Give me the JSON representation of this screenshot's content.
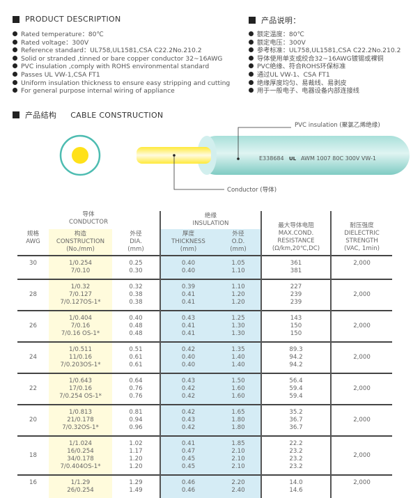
{
  "description_en": {
    "title": "PRODUCT DESCRIPTION",
    "items": [
      "Rated temperature：80℃",
      "Rated voltage：300V",
      "Reference standard：UL758,UL1581,CSA C22.2No.210.2",
      "Solid or stranded ,tinned or bare copper conductor 32~16AWG",
      "PVC insulation ,comply with ROHS environmental standard",
      "Passes UL VW-1,CSA FT1",
      "Uniform insulation thickness to ensure easy stripping and cutting",
      "For general purpose internal wiring of appliance"
    ]
  },
  "description_cn": {
    "title": "产品说明：",
    "items": [
      "额定温度：80℃",
      "额定电压：300V",
      "参考标准：UL758,UL1581,CSA C22.2No.210.2",
      "导体使用单支或绞合32~16AWG镀锡或裸铜",
      "PVC绝缘、符合ROHS环保标准",
      "通过UL VW-1、CSA FT1",
      "绝缘厚度均匀、易裁线、易剥皮",
      "用于一般电子、电器设备内部连接线"
    ]
  },
  "construction": {
    "title_cn": "产品结构",
    "title_en": "CABLE CONSTRUCTION",
    "insulation_label": "PVC insulation (聚氯乙烯绝缘)",
    "conductor_label": "Conductor (导体)",
    "cable_print": "E338684",
    "ul_mark": "UL",
    "cable_print2": "AWM 1007 80C 300V VW-1",
    "colors": {
      "insulation": "#8fd3cc",
      "conductor": "#ffe11a"
    }
  },
  "table": {
    "headers": {
      "conductor": [
        "导体",
        "CONDUCTOR"
      ],
      "insulation": [
        "绝缘",
        "INSULATION"
      ],
      "awg": [
        "规格",
        "AWG"
      ],
      "construction": [
        "构造",
        "CONSTRUCTION",
        "(No./mm)"
      ],
      "dia": [
        "外径",
        "DIA.",
        "(mm)"
      ],
      "thickness": [
        "厚度",
        "THICKNESS",
        "(mm)"
      ],
      "od": [
        "外径",
        "O.D.",
        "(mm)"
      ],
      "resistance": [
        "最大导体电阻",
        "MAX.COND.",
        "RESISTANCE",
        "(Ω/km,20℃,DC)"
      ],
      "dielectric": [
        "耐压强度",
        "DIELECTRIC",
        "STRENGTH",
        "(VAC, 1min)"
      ]
    },
    "rows": [
      {
        "awg": "30",
        "construction": [
          "1/0.254",
          "7/0.10"
        ],
        "dia": [
          "0.25",
          "0.30"
        ],
        "thickness": [
          "0.40",
          "0.40"
        ],
        "od": [
          "1.05",
          "1.10"
        ],
        "resistance": [
          "361",
          "381"
        ],
        "dielectric": "2,000"
      },
      {
        "awg": "28",
        "construction": [
          "1/0.32",
          "7/0.127",
          "7/0.127OS-1*"
        ],
        "dia": [
          "0.32",
          "0.38",
          "0.38"
        ],
        "thickness": [
          "0.39",
          "0.41",
          "0.41"
        ],
        "od": [
          "1.10",
          "1.20",
          "1.20"
        ],
        "resistance": [
          "227",
          "239",
          "239"
        ],
        "dielectric": "2,000"
      },
      {
        "awg": "26",
        "construction": [
          "1/0.404",
          "7/0.16",
          "7/0.16 OS-1*"
        ],
        "dia": [
          "0.40",
          "0.48",
          "0.48"
        ],
        "thickness": [
          "0.43",
          "0.41",
          "0.41"
        ],
        "od": [
          "1.25",
          "1.30",
          "1.30"
        ],
        "resistance": [
          "143",
          "150",
          "150"
        ],
        "dielectric": "2,000"
      },
      {
        "awg": "24",
        "construction": [
          "1/0.511",
          "11/0.16",
          "7/0.203OS-1*"
        ],
        "dia": [
          "0.51",
          "0.61",
          "0.61"
        ],
        "thickness": [
          "0.42",
          "0.40",
          "0.40"
        ],
        "od": [
          "1.35",
          "1.40",
          "1.40"
        ],
        "resistance": [
          "89.3",
          "94.2",
          "94.2"
        ],
        "dielectric": "2,000"
      },
      {
        "awg": "22",
        "construction": [
          "1/0.643",
          "17/0.16",
          "7/0.254 OS-1*"
        ],
        "dia": [
          "0.64",
          "0.76",
          "0.76"
        ],
        "thickness": [
          "0.43",
          "0.42",
          "0.42"
        ],
        "od": [
          "1.50",
          "1.60",
          "1.60"
        ],
        "resistance": [
          "56.4",
          "59.4",
          "59.4"
        ],
        "dielectric": "2,000"
      },
      {
        "awg": "20",
        "construction": [
          "1/0.813",
          "21/0.178",
          "7/0.32OS-1*"
        ],
        "dia": [
          "0.81",
          "0.94",
          "0.96"
        ],
        "thickness": [
          "0.42",
          "0.43",
          "0.42"
        ],
        "od": [
          "1.65",
          "1.80",
          "1.80"
        ],
        "resistance": [
          "35.2",
          "36.7",
          "36.7"
        ],
        "dielectric": "2,000"
      },
      {
        "awg": "18",
        "construction": [
          "1/1.024",
          "16/0.254",
          "34/0.178",
          "7/0.404OS-1*"
        ],
        "dia": [
          "1.02",
          "1.17",
          "1.20",
          "1.20"
        ],
        "thickness": [
          "0.41",
          "0.47",
          "0.45",
          "0.45"
        ],
        "od": [
          "1.85",
          "2.10",
          "2.10",
          "2.10"
        ],
        "resistance": [
          "22.2",
          "23.2",
          "23.2",
          "23.2"
        ],
        "dielectric": "2,000"
      },
      {
        "awg": "16",
        "construction": [
          "1/1.29",
          "26/0.254"
        ],
        "dia": [
          "1.29",
          "1.49"
        ],
        "thickness": [
          "0.46",
          "0.46"
        ],
        "od": [
          "2.20",
          "2.40"
        ],
        "resistance": [
          "14.0",
          "14.6"
        ],
        "dielectric": "2,000"
      }
    ]
  }
}
